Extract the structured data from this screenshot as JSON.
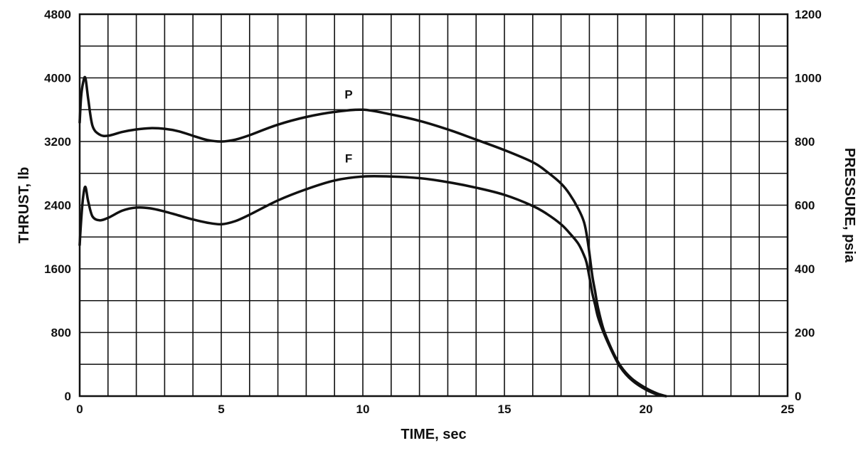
{
  "chart_data": {
    "type": "line",
    "title": "",
    "xlabel": "TIME, sec",
    "ylabel_left": "THRUST, lb",
    "ylabel_right": "PRESSURE, psia",
    "xlim": [
      0,
      25
    ],
    "ylim_left": [
      0,
      4800
    ],
    "ylim_right": [
      0,
      1200
    ],
    "x_ticks": [
      "0",
      "5",
      "10",
      "15",
      "20",
      "25"
    ],
    "y_ticks_left": [
      "0",
      "800",
      "1600",
      "2400",
      "3200",
      "4000",
      "4800"
    ],
    "y_ticks_right": [
      "0",
      "200",
      "400",
      "600",
      "800",
      "1000",
      "1200"
    ],
    "grid": true,
    "series": [
      {
        "name": "P",
        "axis": "right",
        "x": [
          0,
          0.05,
          0.12,
          0.2,
          0.3,
          0.45,
          0.7,
          1.0,
          1.5,
          2.0,
          2.5,
          3.0,
          3.5,
          4.0,
          4.5,
          5.0,
          5.5,
          6.0,
          7.0,
          8.0,
          9.0,
          10.0,
          11.0,
          12.0,
          13.0,
          14.0,
          15.0,
          16.0,
          16.5,
          17.0,
          17.3,
          17.6,
          17.8,
          17.9,
          18.0,
          18.1,
          18.2,
          18.3,
          18.5,
          18.8,
          19.1,
          19.5,
          20.0,
          20.4,
          20.7
        ],
        "y": [
          860,
          940,
          985,
          1000,
          935,
          850,
          822,
          818,
          830,
          838,
          842,
          840,
          832,
          818,
          805,
          800,
          806,
          820,
          853,
          877,
          893,
          900,
          885,
          865,
          838,
          806,
          773,
          735,
          705,
          668,
          635,
          590,
          550,
          510,
          450,
          380,
          330,
          280,
          210,
          145,
          95,
          55,
          25,
          8,
          0
        ]
      },
      {
        "name": "F",
        "axis": "left",
        "x": [
          0,
          0.05,
          0.12,
          0.2,
          0.3,
          0.45,
          0.7,
          1.0,
          1.5,
          2.0,
          2.5,
          3.0,
          3.5,
          4.0,
          4.5,
          5.0,
          5.5,
          6.0,
          7.0,
          8.0,
          9.0,
          10.0,
          11.0,
          12.0,
          13.0,
          14.0,
          15.0,
          16.0,
          16.5,
          17.0,
          17.3,
          17.6,
          17.8,
          17.9,
          18.0,
          18.1,
          18.2,
          18.3,
          18.5,
          18.8,
          19.1,
          19.5,
          20.0,
          20.4,
          20.7
        ],
        "y": [
          1900,
          2200,
          2500,
          2630,
          2450,
          2260,
          2210,
          2240,
          2330,
          2370,
          2360,
          2320,
          2270,
          2220,
          2180,
          2160,
          2200,
          2280,
          2460,
          2600,
          2710,
          2760,
          2760,
          2740,
          2690,
          2620,
          2530,
          2390,
          2290,
          2160,
          2050,
          1920,
          1780,
          1680,
          1500,
          1300,
          1150,
          1000,
          800,
          560,
          360,
          200,
          80,
          20,
          0
        ]
      }
    ]
  }
}
